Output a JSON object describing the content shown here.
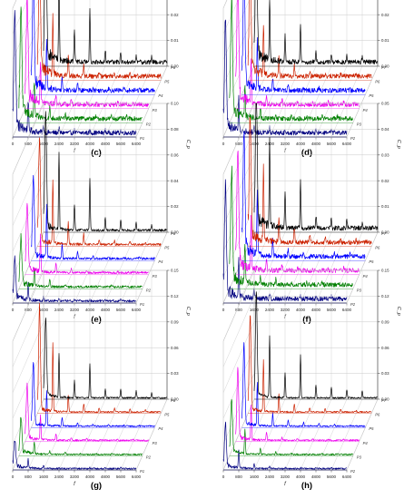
{
  "colors": {
    "axis": "#555555",
    "grid": "#c8c8c8",
    "series": [
      "#000080",
      "#008000",
      "#ee00ee",
      "#0000ff",
      "#cc2200",
      "#000000"
    ]
  },
  "chart_data": [
    {
      "type": "line",
      "panel_label": "",
      "xlabel": "f",
      "ylabel": "C_p",
      "x_ticks": [
        "0",
        "800",
        "1600",
        "2400",
        "3200",
        "4000",
        "4800",
        "5600",
        "6400"
      ],
      "z_ticks": [
        "0.00",
        "0.01",
        "0.02",
        "0.03",
        "0.04",
        "0.05"
      ],
      "ylim": [
        0,
        0.05
      ],
      "harmonics_f": [
        0,
        800,
        1600,
        2400,
        3200,
        4000,
        4800,
        5600,
        6400
      ],
      "series": [
        {
          "label": "P1",
          "peaks": [
            0.045,
            0.012,
            0.003,
            0.002,
            0.001,
            0.001,
            0.001,
            0.001,
            0.0
          ]
        },
        {
          "label": "P2",
          "peaks": [
            0.04,
            0.014,
            0.004,
            0.002,
            0.001,
            0.001,
            0.001,
            0.001,
            0.0
          ]
        },
        {
          "label": "P3",
          "peaks": [
            0.038,
            0.016,
            0.004,
            0.002,
            0.001,
            0.001,
            0.001,
            0.001,
            0.0
          ]
        },
        {
          "label": "P4",
          "peaks": [
            0.042,
            0.02,
            0.005,
            0.003,
            0.001,
            0.001,
            0.001,
            0.001,
            0.0
          ]
        },
        {
          "label": "P5",
          "peaks": [
            0.045,
            0.022,
            0.008,
            0.004,
            0.002,
            0.001,
            0.001,
            0.001,
            0.0
          ]
        },
        {
          "label": "P6",
          "peaks": [
            0.05,
            0.03,
            0.012,
            0.02,
            0.005,
            0.004,
            0.003,
            0.002,
            0.0
          ]
        }
      ]
    },
    {
      "type": "line",
      "panel_label": "",
      "xlabel": "f",
      "ylabel": "C_p",
      "x_ticks": [
        "0",
        "800",
        "1600",
        "2400",
        "3200",
        "4000",
        "4800",
        "5600",
        "6400"
      ],
      "z_ticks": [
        "0.00",
        "0.01",
        "0.02",
        "0.03",
        "0.04",
        "0.05"
      ],
      "ylim": [
        0,
        0.05
      ],
      "harmonics_f": [
        0,
        800,
        1600,
        2400,
        3200,
        4000,
        4800,
        5600,
        6400
      ],
      "series": [
        {
          "label": "P2",
          "peaks": [
            0.04,
            0.012,
            0.003,
            0.002,
            0.001,
            0.001,
            0.001,
            0.001,
            0.0
          ]
        },
        {
          "label": "P3",
          "peaks": [
            0.042,
            0.013,
            0.004,
            0.002,
            0.001,
            0.001,
            0.001,
            0.001,
            0.0
          ]
        },
        {
          "label": "P4",
          "peaks": [
            0.044,
            0.016,
            0.004,
            0.002,
            0.001,
            0.001,
            0.001,
            0.001,
            0.0
          ]
        },
        {
          "label": "P5",
          "peaks": [
            0.046,
            0.018,
            0.005,
            0.003,
            0.001,
            0.001,
            0.001,
            0.001,
            0.0
          ]
        },
        {
          "label": "P6",
          "peaks": [
            0.048,
            0.02,
            0.008,
            0.004,
            0.002,
            0.001,
            0.001,
            0.001,
            0.0
          ]
        },
        {
          "label": "P7",
          "peaks": [
            0.05,
            0.024,
            0.01,
            0.015,
            0.004,
            0.003,
            0.003,
            0.002,
            0.0
          ]
        }
      ]
    },
    {
      "type": "line",
      "panel_label": "(c)",
      "xlabel": "f",
      "ylabel": "C_p",
      "x_ticks": [
        "0",
        "800",
        "1600",
        "2400",
        "3200",
        "4000",
        "4800",
        "5600",
        "6400"
      ],
      "z_ticks": [
        "0.00",
        "0.02",
        "0.04",
        "0.06",
        "0.08",
        "0.10"
      ],
      "ylim": [
        0,
        0.1
      ],
      "harmonics_f": [
        0,
        800,
        1600,
        2400,
        3200,
        4000,
        4800,
        5600,
        6400
      ],
      "series": [
        {
          "label": "P1",
          "peaks": [
            0.03,
            0.012,
            0.004,
            0.002,
            0.001,
            0.001,
            0.001,
            0.001,
            0.0
          ]
        },
        {
          "label": "P2",
          "peaks": [
            0.035,
            0.015,
            0.005,
            0.002,
            0.001,
            0.001,
            0.001,
            0.001,
            0.0
          ]
        },
        {
          "label": "P3",
          "peaks": [
            0.05,
            0.03,
            0.008,
            0.003,
            0.002,
            0.001,
            0.001,
            0.001,
            0.0
          ]
        },
        {
          "label": "P4",
          "peaks": [
            0.06,
            0.04,
            0.012,
            0.005,
            0.002,
            0.002,
            0.001,
            0.001,
            0.0
          ]
        },
        {
          "label": "P5",
          "peaks": [
            0.08,
            0.05,
            0.018,
            0.008,
            0.004,
            0.003,
            0.002,
            0.001,
            0.0
          ]
        },
        {
          "label": "P6",
          "peaks": [
            0.09,
            0.06,
            0.02,
            0.04,
            0.01,
            0.008,
            0.006,
            0.004,
            0.0
          ]
        }
      ]
    },
    {
      "type": "line",
      "panel_label": "(d)",
      "xlabel": "f",
      "ylabel": "C_p",
      "x_ticks": [
        "0",
        "800",
        "1600",
        "2400",
        "3200",
        "4000",
        "4800",
        "5600",
        "6400"
      ],
      "z_ticks": [
        "0.00",
        "0.01",
        "0.02",
        "0.03",
        "0.04",
        "0.05"
      ],
      "ylim": [
        0,
        0.05
      ],
      "harmonics_f": [
        0,
        800,
        1600,
        2400,
        3200,
        4000,
        4800,
        5600,
        6400
      ],
      "series": [
        {
          "label": "P2",
          "peaks": [
            0.04,
            0.014,
            0.004,
            0.002,
            0.001,
            0.001,
            0.001,
            0.001,
            0.0
          ]
        },
        {
          "label": "P3",
          "peaks": [
            0.042,
            0.016,
            0.004,
            0.002,
            0.001,
            0.001,
            0.001,
            0.001,
            0.0
          ]
        },
        {
          "label": "P4",
          "peaks": [
            0.044,
            0.02,
            0.005,
            0.003,
            0.001,
            0.001,
            0.001,
            0.001,
            0.0
          ]
        },
        {
          "label": "P5",
          "peaks": [
            0.046,
            0.024,
            0.006,
            0.003,
            0.002,
            0.001,
            0.001,
            0.001,
            0.0
          ]
        },
        {
          "label": "P6",
          "peaks": [
            0.048,
            0.03,
            0.01,
            0.006,
            0.003,
            0.002,
            0.001,
            0.001,
            0.0
          ]
        },
        {
          "label": "P7",
          "peaks": [
            0.05,
            0.034,
            0.014,
            0.018,
            0.005,
            0.004,
            0.003,
            0.002,
            0.0
          ]
        }
      ]
    },
    {
      "type": "line",
      "panel_label": "(e)",
      "xlabel": "f",
      "ylabel": "C_p",
      "x_ticks": [
        "0",
        "800",
        "1600",
        "2400",
        "3200",
        "4000",
        "4800",
        "5600",
        "6400"
      ],
      "z_ticks": [
        "0.00",
        "0.03",
        "0.06",
        "0.09",
        "0.12",
        "0.15"
      ],
      "ylim": [
        0,
        0.15
      ],
      "harmonics_f": [
        0,
        800,
        1600,
        2400,
        3200,
        4000,
        4800,
        5600,
        6400
      ],
      "series": [
        {
          "label": "P1",
          "peaks": [
            0.03,
            0.01,
            0.003,
            0.001,
            0.001,
            0.001,
            0.001,
            0.001,
            0.0
          ]
        },
        {
          "label": "P2",
          "peaks": [
            0.04,
            0.015,
            0.004,
            0.002,
            0.001,
            0.001,
            0.001,
            0.001,
            0.0
          ]
        },
        {
          "label": "P3",
          "peaks": [
            0.06,
            0.03,
            0.008,
            0.003,
            0.002,
            0.001,
            0.001,
            0.001,
            0.0
          ]
        },
        {
          "label": "P4",
          "peaks": [
            0.07,
            0.04,
            0.01,
            0.004,
            0.002,
            0.002,
            0.001,
            0.001,
            0.0
          ]
        },
        {
          "label": "P5",
          "peaks": [
            0.12,
            0.08,
            0.02,
            0.01,
            0.005,
            0.004,
            0.003,
            0.002,
            0.0
          ]
        },
        {
          "label": "P6",
          "peaks": [
            0.09,
            0.05,
            0.02,
            0.04,
            0.01,
            0.01,
            0.008,
            0.006,
            0.0
          ]
        }
      ]
    },
    {
      "type": "line",
      "panel_label": "(f)",
      "xlabel": "f",
      "ylabel": "C_p",
      "x_ticks": [
        "0",
        "800",
        "1600",
        "2400",
        "3200",
        "4000",
        "4800",
        "5600",
        "6400"
      ],
      "z_ticks": [
        "0.00",
        "0.03",
        "0.06",
        "0.09",
        "0.12",
        "0.15"
      ],
      "ylim": [
        0,
        0.15
      ],
      "harmonics_f": [
        0,
        800,
        1600,
        2400,
        3200,
        4000,
        4800,
        5600,
        6400
      ],
      "series": [
        {
          "label": "P2",
          "peaks": [
            0.05,
            0.02,
            0.005,
            0.002,
            0.001,
            0.001,
            0.001,
            0.001,
            0.0
          ]
        },
        {
          "label": "P3",
          "peaks": [
            0.06,
            0.03,
            0.008,
            0.003,
            0.002,
            0.001,
            0.001,
            0.001,
            0.0
          ]
        },
        {
          "label": "P4",
          "peaks": [
            0.08,
            0.04,
            0.01,
            0.004,
            0.002,
            0.002,
            0.001,
            0.001,
            0.0
          ]
        },
        {
          "label": "P5",
          "peaks": [
            0.09,
            0.05,
            0.015,
            0.008,
            0.004,
            0.003,
            0.002,
            0.001,
            0.0
          ]
        },
        {
          "label": "P6",
          "peaks": [
            0.11,
            0.06,
            0.02,
            0.01,
            0.005,
            0.004,
            0.003,
            0.002,
            0.0
          ]
        },
        {
          "label": "P7",
          "peaks": [
            0.12,
            0.07,
            0.03,
            0.05,
            0.015,
            0.012,
            0.01,
            0.008,
            0.0
          ]
        }
      ]
    }
  ],
  "bottom_panel_labels": [
    "(g)",
    "(h)"
  ]
}
